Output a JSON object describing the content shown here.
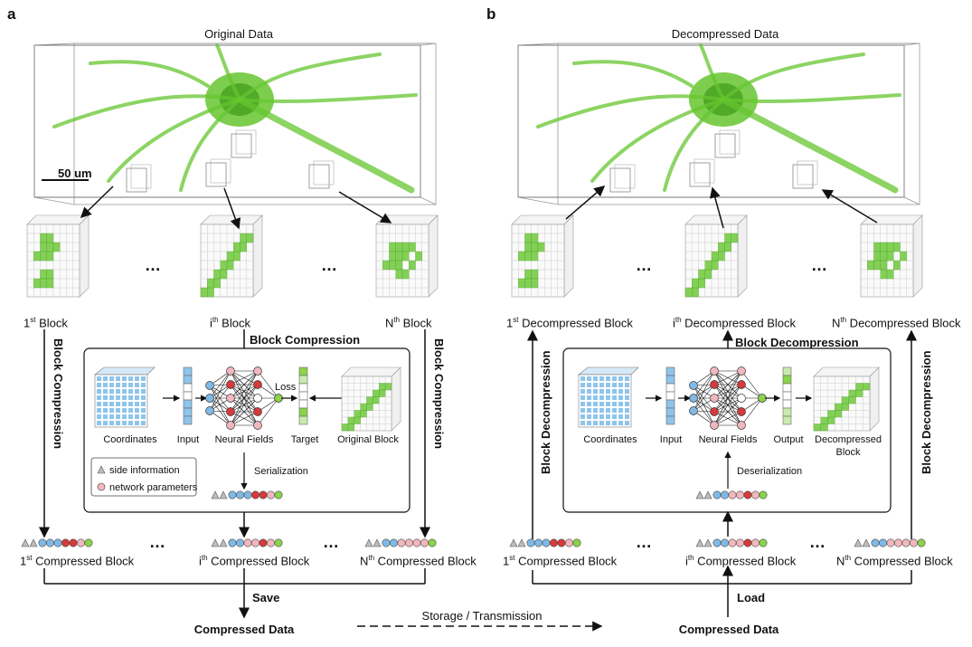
{
  "colors": {
    "neuron": "#66c62f",
    "neuron_dark": "#3e9a18",
    "coord_blue": "#8ec5ea",
    "param_blue": "#7fb9e6",
    "param_red": "#d63a3a",
    "param_pink": "#f2b7bd",
    "param_green": "#8bd34a",
    "side_gray": "#bdbdbd"
  },
  "panel_a": {
    "letter": "a",
    "volume_title": "Original Data",
    "scale_bar": "50 um",
    "ellipsis": "…",
    "block_1": {
      "sup_prefix": "1",
      "sup": "st",
      "suffix": " Block"
    },
    "block_i": {
      "sup_prefix": "i",
      "sup": "th",
      "suffix": " Block"
    },
    "block_n": {
      "sup_prefix": "N",
      "sup": "th",
      "suffix": " Block"
    },
    "side_arrow_label": "Block Compression",
    "center_arrow_label": "Block Compression",
    "pipeline": {
      "coordinates": "Coordinates",
      "input": "Input",
      "neural_fields": "Neural Fields",
      "target": "Target",
      "original_block": "Original Block",
      "loss": "Loss",
      "serialization": "Serialization",
      "legend_side": "side information",
      "legend_params": "network parameters"
    },
    "compressed_1": {
      "sup_prefix": "1",
      "sup": "st",
      "suffix": " Compressed Block"
    },
    "compressed_i": {
      "sup_prefix": "i",
      "sup": "th",
      "suffix": " Compressed Block"
    },
    "compressed_n": {
      "sup_prefix": "N",
      "sup": "th",
      "suffix": " Compressed Block"
    },
    "save": "Save",
    "compressed_data": "Compressed Data"
  },
  "middle": {
    "storage": "Storage / Transmission"
  },
  "panel_b": {
    "letter": "b",
    "volume_title": "Decompressed Data",
    "ellipsis": "…",
    "block_1": {
      "sup_prefix": "1",
      "sup": "st",
      "suffix": " Decompressed Block"
    },
    "block_i": {
      "sup_prefix": "i",
      "sup": "th",
      "suffix": " Decompressed Block"
    },
    "block_n": {
      "sup_prefix": "N",
      "sup": "th",
      "suffix": " Decompressed Block"
    },
    "side_arrow_label": "Block Decompression",
    "center_arrow_label": "Block Decompression",
    "pipeline": {
      "coordinates": "Coordinates",
      "input": "Input",
      "neural_fields": "Neural Fields",
      "output": "Output",
      "decompressed_block": "Decompressed",
      "decompressed_block2": "Block",
      "deserialization": "Deserialization"
    },
    "compressed_1": {
      "sup_prefix": "1",
      "sup": "st",
      "suffix": " Compressed Block"
    },
    "compressed_i": {
      "sup_prefix": "i",
      "sup": "th",
      "suffix": " Compressed Block"
    },
    "compressed_n": {
      "sup_prefix": "N",
      "sup": "th",
      "suffix": " Compressed Block"
    },
    "load": "Load",
    "compressed_data": "Compressed Data"
  }
}
